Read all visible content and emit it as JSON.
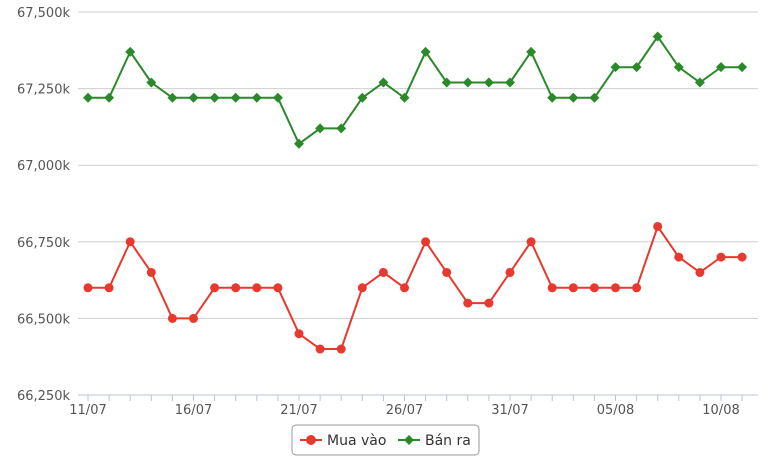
{
  "chart_data": {
    "type": "line",
    "title": "",
    "xlabel": "",
    "ylabel": "",
    "x": [
      "11/07",
      "12/07",
      "13/07",
      "14/07",
      "15/07",
      "16/07",
      "17/07",
      "18/07",
      "19/07",
      "20/07",
      "21/07",
      "22/07",
      "23/07",
      "24/07",
      "25/07",
      "26/07",
      "27/07",
      "28/07",
      "29/07",
      "30/07",
      "31/07",
      "01/08",
      "02/08",
      "03/08",
      "04/08",
      "05/08",
      "06/08",
      "07/08",
      "08/08",
      "09/08",
      "10/08",
      "11/08"
    ],
    "x_tick_labels": [
      "11/07",
      "16/07",
      "21/07",
      "26/07",
      "31/07",
      "05/08",
      "10/08"
    ],
    "y_tick_labels": [
      "66,250k",
      "66,500k",
      "66,750k",
      "67,000k",
      "67,250k",
      "67,500k"
    ],
    "ylim": [
      66250,
      67500
    ],
    "grid": true,
    "legend_position": "bottom-center",
    "series": [
      {
        "name": "Mua vào",
        "color": "#e8392f",
        "marker": "circle",
        "values": [
          66600,
          66600,
          66750,
          66650,
          66500,
          66500,
          66600,
          66600,
          66600,
          66600,
          66450,
          66400,
          66400,
          66600,
          66650,
          66600,
          66750,
          66650,
          66550,
          66550,
          66650,
          66750,
          66600,
          66600,
          66600,
          66600,
          66600,
          66800,
          66700,
          66650,
          66700,
          66700
        ]
      },
      {
        "name": "Bán ra",
        "color": "#2a8a2a",
        "marker": "diamond",
        "values": [
          67220,
          67220,
          67370,
          67270,
          67220,
          67220,
          67220,
          67220,
          67220,
          67220,
          67070,
          67120,
          67120,
          67220,
          67270,
          67220,
          67370,
          67270,
          67270,
          67270,
          67270,
          67370,
          67220,
          67220,
          67220,
          67320,
          67320,
          67420,
          67320,
          67270,
          67320,
          67320
        ]
      }
    ]
  }
}
